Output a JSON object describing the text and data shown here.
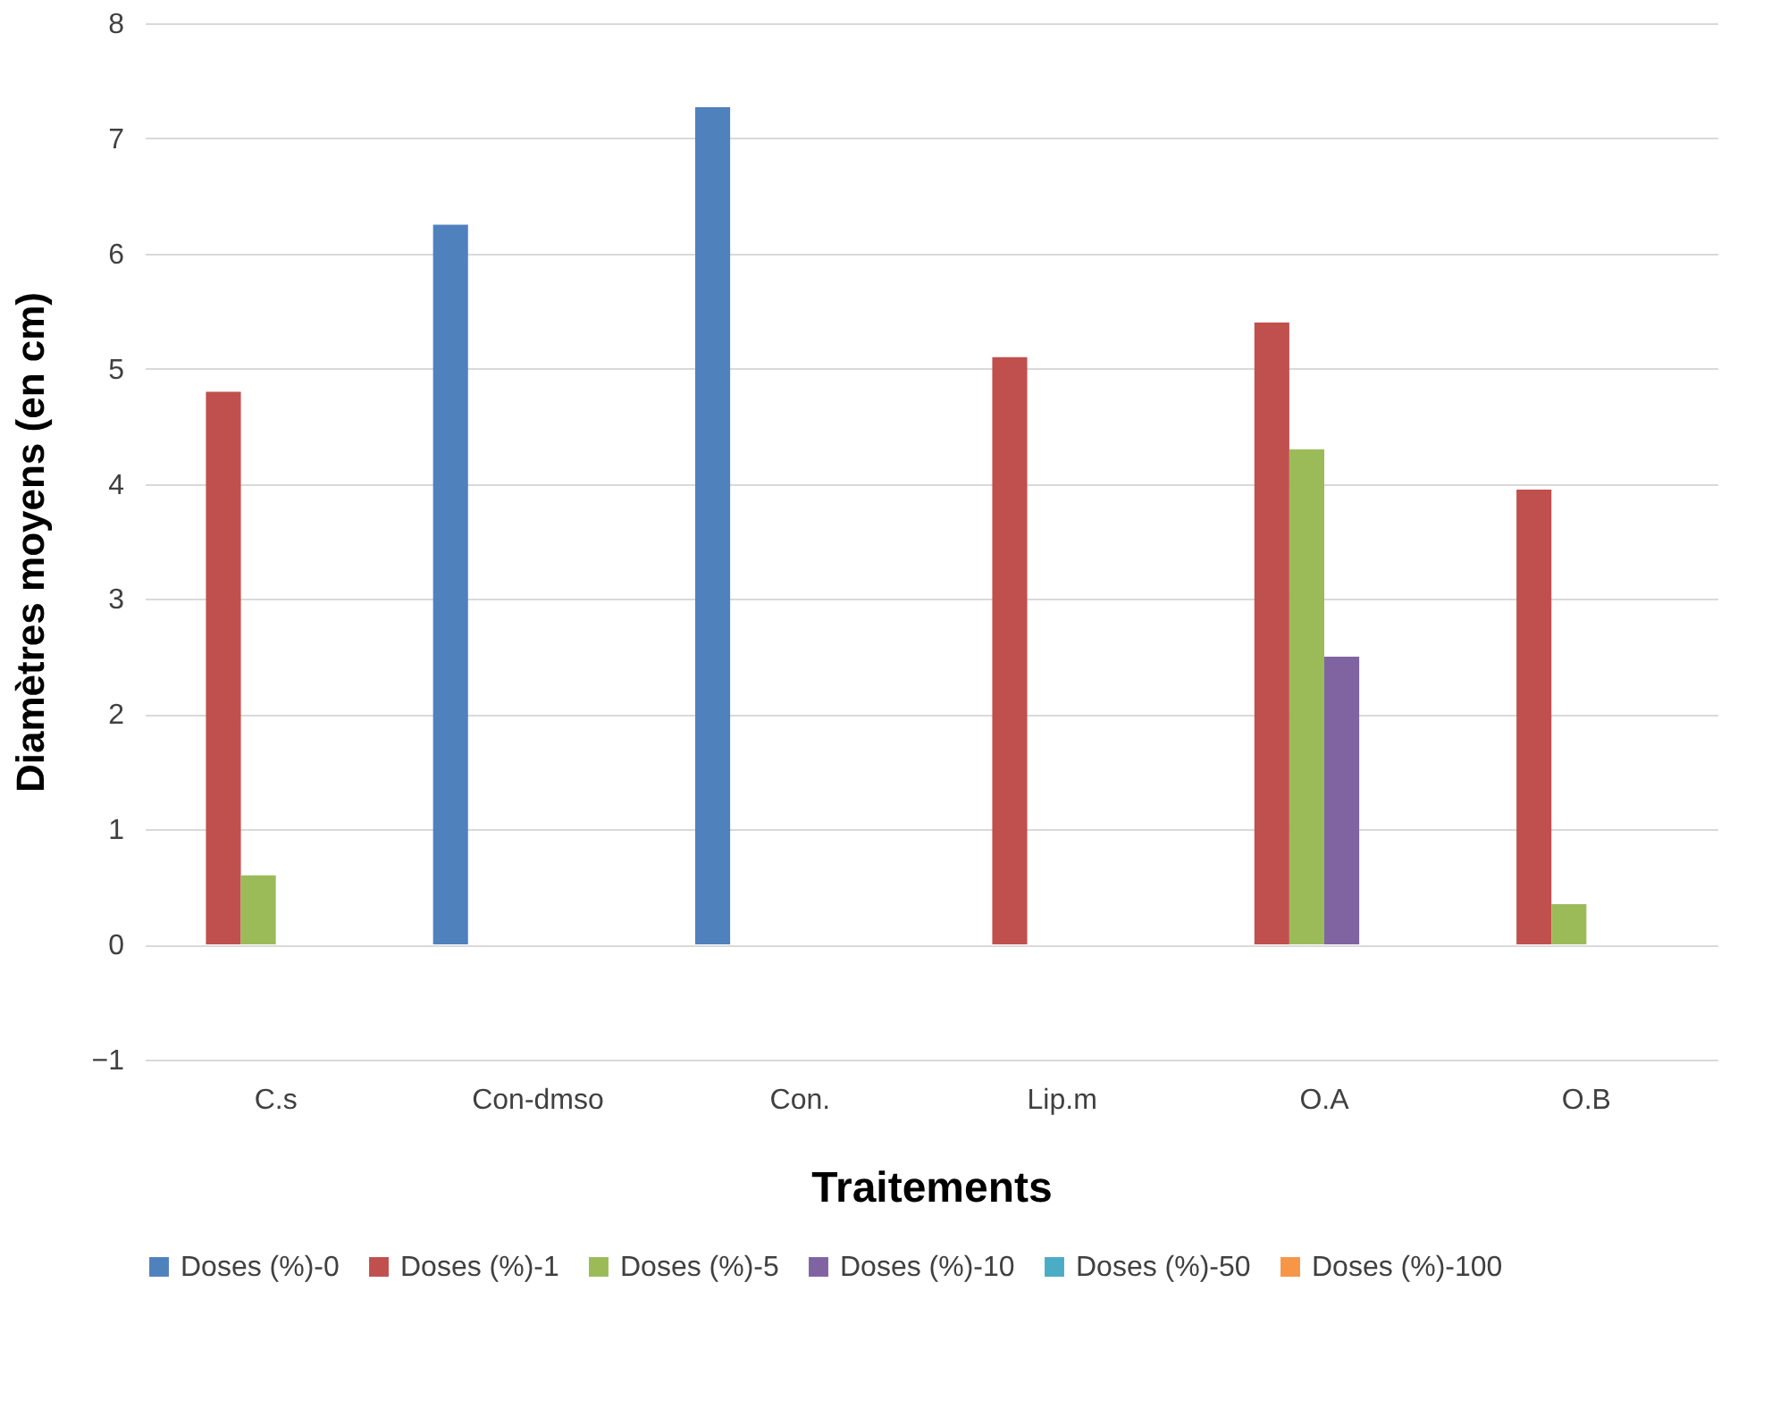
{
  "chart_data": {
    "type": "bar",
    "xlabel": "Traitements",
    "ylabel": "Diamètres moyens (en cm)",
    "categories": [
      "C.s",
      "Con-dmso",
      "Con.",
      "Lip.m",
      "O.A",
      "O.B"
    ],
    "series": [
      {
        "name": "Doses (%)-0",
        "color": "#4f81bd",
        "values": [
          null,
          6.25,
          7.27,
          null,
          null,
          null
        ]
      },
      {
        "name": "Doses (%)-1",
        "color": "#c0504d",
        "values": [
          4.8,
          null,
          null,
          5.1,
          5.4,
          3.95
        ]
      },
      {
        "name": "Doses (%)-5",
        "color": "#9bbb59",
        "values": [
          0.6,
          null,
          null,
          0,
          4.3,
          0.35
        ]
      },
      {
        "name": "Doses (%)-10",
        "color": "#8064a2",
        "values": [
          0,
          null,
          null,
          0,
          2.5,
          0
        ]
      },
      {
        "name": "Doses (%)-50",
        "color": "#4bacc6",
        "values": [
          0,
          null,
          null,
          0,
          0,
          0
        ]
      },
      {
        "name": "Doses (%)-100",
        "color": "#f79646",
        "values": [
          0,
          null,
          null,
          0,
          0,
          0
        ]
      }
    ],
    "ylim": [
      -1,
      8
    ],
    "yticks": [
      -1,
      0,
      1,
      2,
      3,
      4,
      5,
      6,
      7,
      8
    ],
    "grid": "y",
    "legend": "bottom"
  }
}
